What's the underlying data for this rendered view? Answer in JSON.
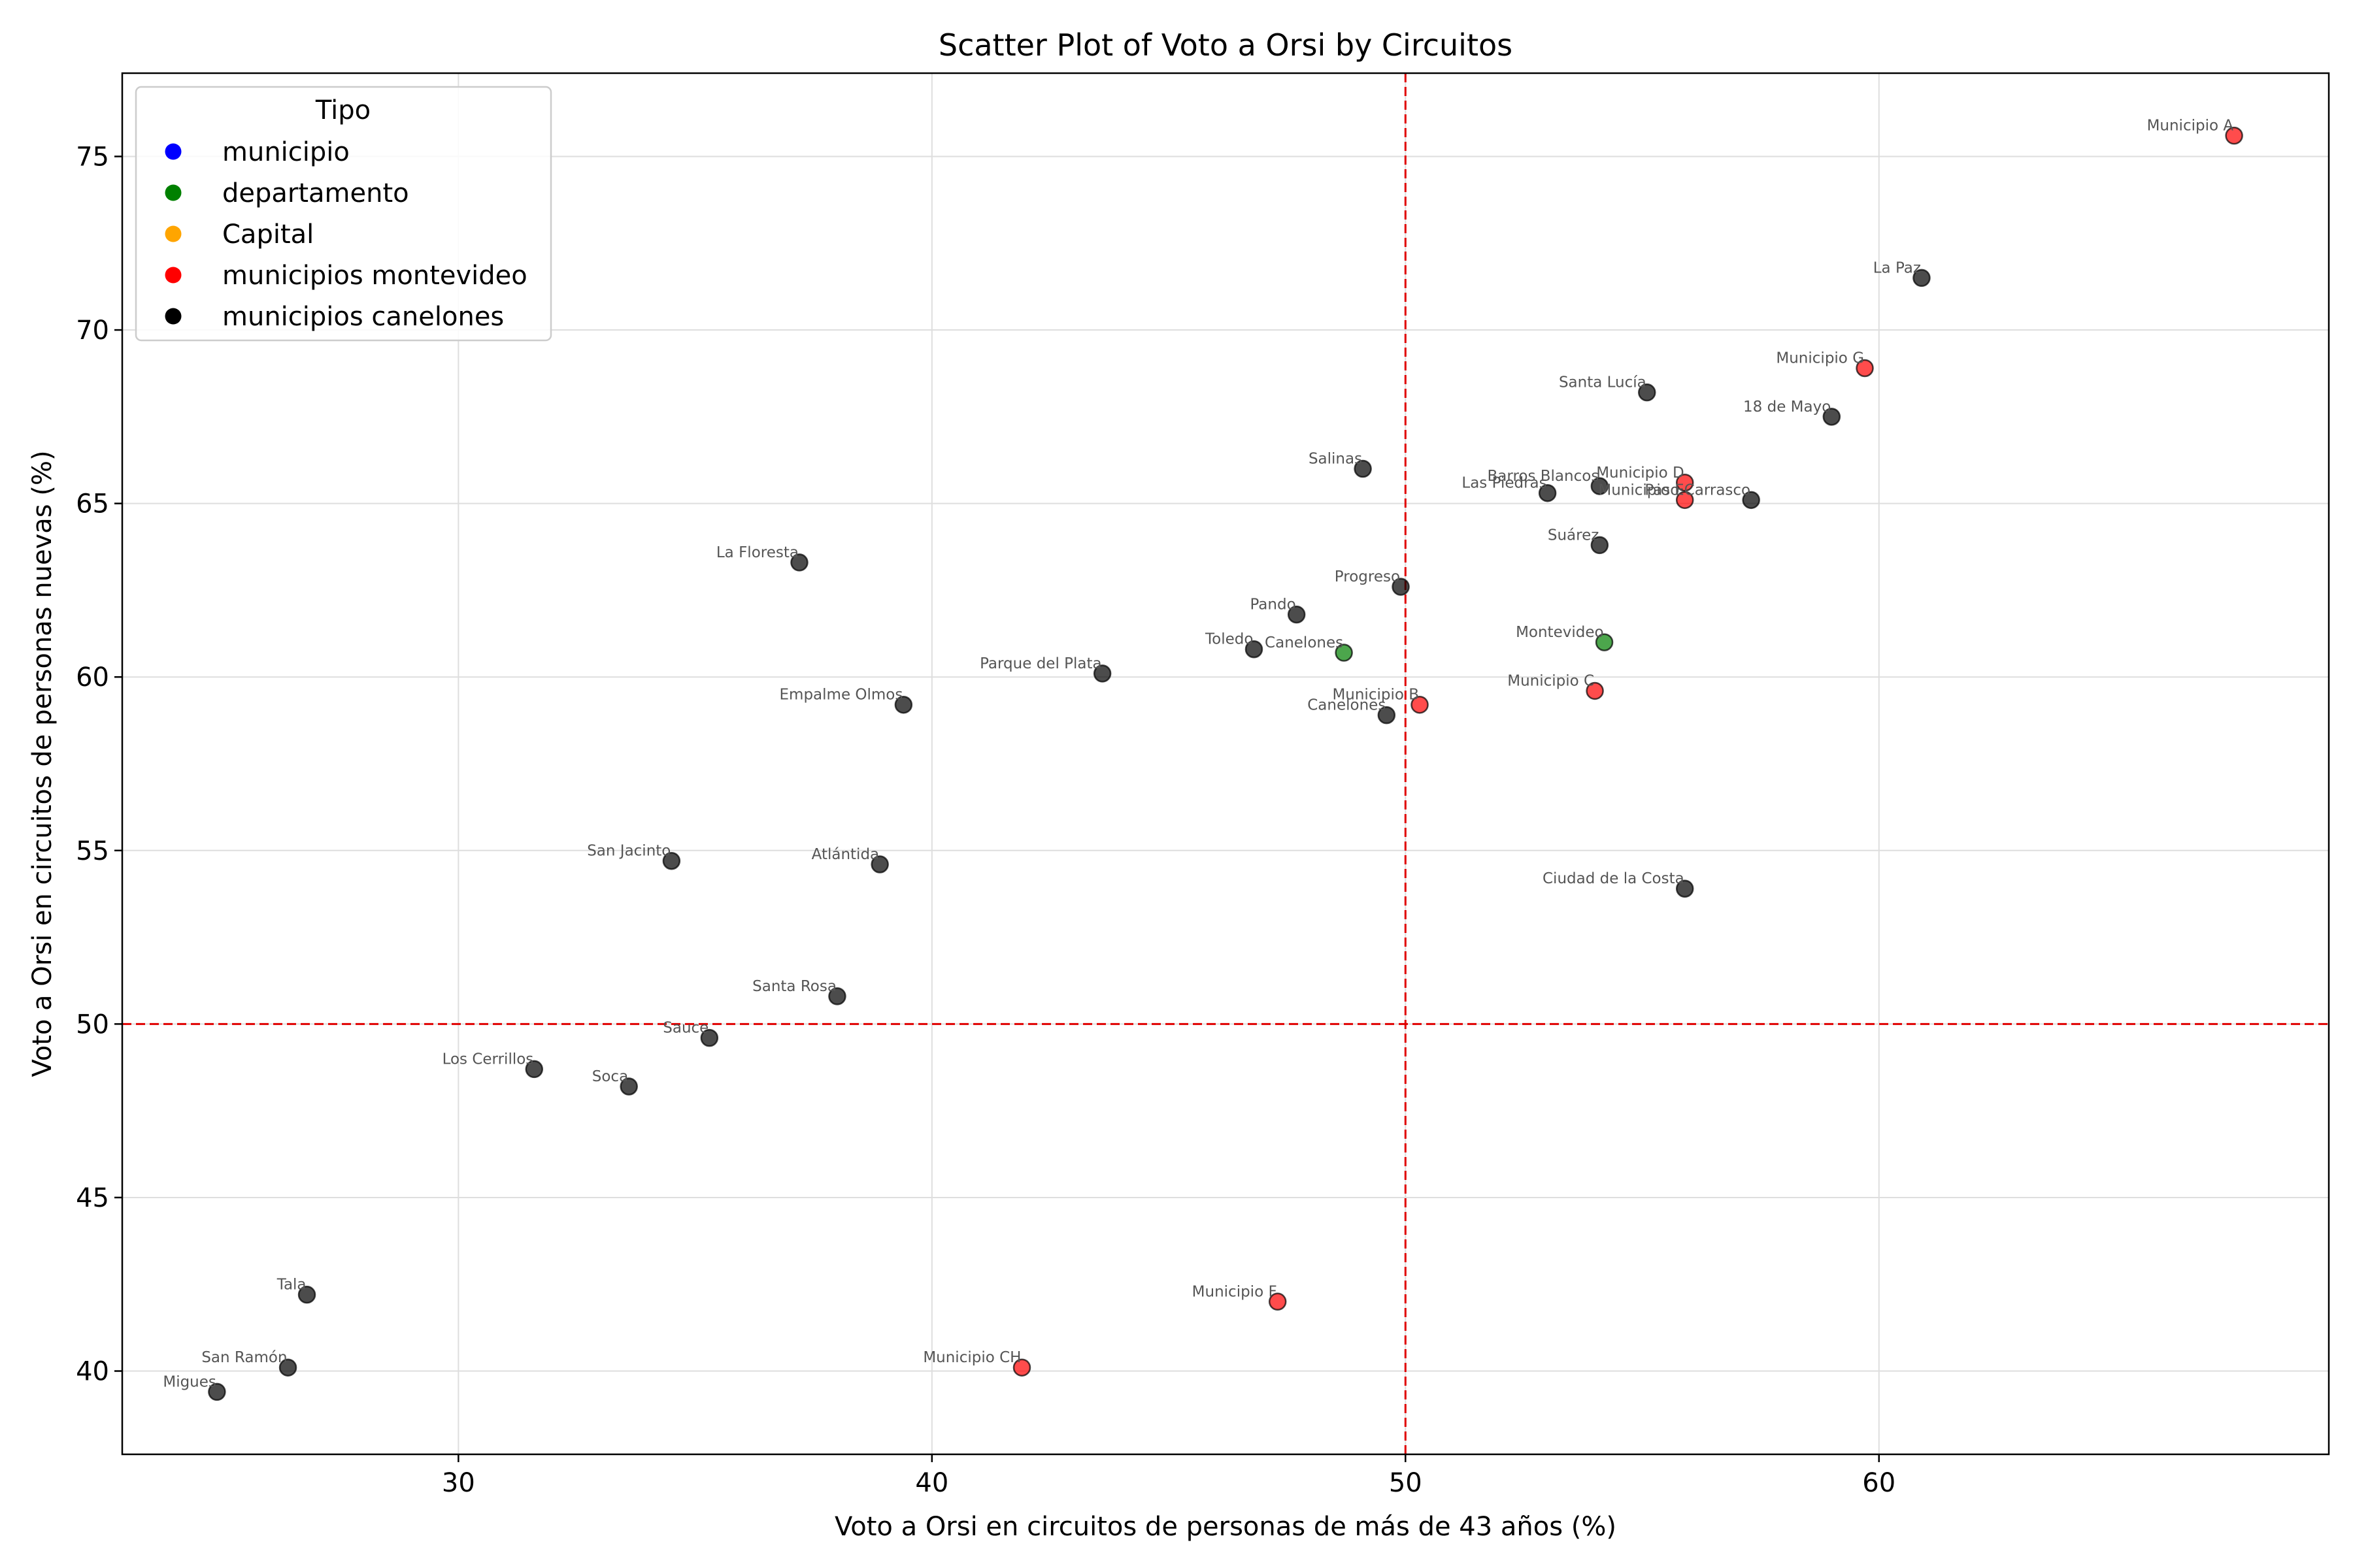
{
  "chart_data": {
    "type": "scatter",
    "title": "Scatter Plot of Voto a Orsi by Circuitos",
    "xlabel": "Voto a Orsi en circuitos de personas de más de 43 años (%)",
    "ylabel": "Voto a Orsi en circuitos de personas nuevas (%)",
    "xlim": [
      22.9,
      69.5
    ],
    "ylim": [
      37.6,
      77.4
    ],
    "xticks": [
      30,
      40,
      50,
      60
    ],
    "yticks": [
      40,
      45,
      50,
      55,
      60,
      65,
      70,
      75
    ],
    "grid": true,
    "reference_lines": {
      "x": 50,
      "y": 50,
      "color": "#e00000",
      "style": "dashed"
    },
    "legend": {
      "title": "Tipo",
      "placement": "top-left",
      "entries": [
        {
          "name": "municipio",
          "color": "#0000ff"
        },
        {
          "name": "departamento",
          "color": "#008000"
        },
        {
          "name": "Capital",
          "color": "#ffa500"
        },
        {
          "name": "municipios montevideo",
          "color": "#ff0000"
        },
        {
          "name": "municipios canelones",
          "color": "#000000"
        }
      ]
    },
    "points": [
      {
        "label": "Municipio A",
        "x": 67.5,
        "y": 75.6,
        "group": "municipios montevideo"
      },
      {
        "label": "La Paz",
        "x": 60.9,
        "y": 71.5,
        "group": "municipios canelones"
      },
      {
        "label": "Municipio G",
        "x": 59.7,
        "y": 68.9,
        "group": "municipios montevideo"
      },
      {
        "label": "Santa Lucía",
        "x": 55.1,
        "y": 68.2,
        "group": "municipios canelones"
      },
      {
        "label": "18 de Mayo",
        "x": 59.0,
        "y": 67.5,
        "group": "municipios canelones"
      },
      {
        "label": "Salinas",
        "x": 49.1,
        "y": 66.0,
        "group": "municipios canelones"
      },
      {
        "label": "Barros Blancos",
        "x": 54.1,
        "y": 65.5,
        "group": "municipios canelones"
      },
      {
        "label": "Municipio D",
        "x": 55.9,
        "y": 65.6,
        "group": "municipios montevideo"
      },
      {
        "label": "Las Piedras",
        "x": 53.0,
        "y": 65.3,
        "group": "municipios canelones"
      },
      {
        "label": "Municipio E",
        "x": 55.9,
        "y": 65.1,
        "group": "municipios montevideo"
      },
      {
        "label": "Paso Carrasco",
        "x": 57.3,
        "y": 65.1,
        "group": "municipios canelones"
      },
      {
        "label": "Suárez",
        "x": 54.1,
        "y": 63.8,
        "group": "municipios canelones"
      },
      {
        "label": "La Floresta",
        "x": 37.2,
        "y": 63.3,
        "group": "municipios canelones"
      },
      {
        "label": "Progreso",
        "x": 49.9,
        "y": 62.6,
        "group": "municipios canelones"
      },
      {
        "label": "Pando",
        "x": 47.7,
        "y": 61.8,
        "group": "municipios canelones"
      },
      {
        "label": "Montevideo",
        "x": 54.2,
        "y": 61.0,
        "group": "departamento"
      },
      {
        "label": "Toledo",
        "x": 46.8,
        "y": 60.8,
        "group": "municipios canelones"
      },
      {
        "label": "Canelones",
        "x": 48.7,
        "y": 60.7,
        "group": "departamento"
      },
      {
        "label": "Parque del Plata",
        "x": 43.6,
        "y": 60.1,
        "group": "municipios canelones"
      },
      {
        "label": "Municipio C",
        "x": 54.0,
        "y": 59.6,
        "group": "municipios montevideo"
      },
      {
        "label": "Empalme Olmos",
        "x": 39.4,
        "y": 59.2,
        "group": "municipios canelones"
      },
      {
        "label": "Municipio B",
        "x": 50.3,
        "y": 59.2,
        "group": "municipios montevideo"
      },
      {
        "label": "Canelones",
        "x": 49.6,
        "y": 58.9,
        "group": "municipios canelones"
      },
      {
        "label": "San Jacinto",
        "x": 34.5,
        "y": 54.7,
        "group": "municipios canelones"
      },
      {
        "label": "Atlántida",
        "x": 38.9,
        "y": 54.6,
        "group": "municipios canelones"
      },
      {
        "label": "Ciudad de la Costa",
        "x": 55.9,
        "y": 53.9,
        "group": "municipios canelones"
      },
      {
        "label": "Santa Rosa",
        "x": 38.0,
        "y": 50.8,
        "group": "municipios canelones"
      },
      {
        "label": "Sauce",
        "x": 35.3,
        "y": 49.6,
        "group": "municipios canelones"
      },
      {
        "label": "Los Cerrillos",
        "x": 31.6,
        "y": 48.7,
        "group": "municipios canelones"
      },
      {
        "label": "Soca",
        "x": 33.6,
        "y": 48.2,
        "group": "municipios canelones"
      },
      {
        "label": "Tala",
        "x": 26.8,
        "y": 42.2,
        "group": "municipios canelones"
      },
      {
        "label": "Municipio F",
        "x": 47.3,
        "y": 42.0,
        "group": "municipios montevideo"
      },
      {
        "label": "San Ramón",
        "x": 26.4,
        "y": 40.1,
        "group": "municipios canelones"
      },
      {
        "label": "Municipio CH",
        "x": 41.9,
        "y": 40.1,
        "group": "municipios montevideo"
      },
      {
        "label": "Migues",
        "x": 24.9,
        "y": 39.4,
        "group": "municipios canelones"
      }
    ]
  }
}
